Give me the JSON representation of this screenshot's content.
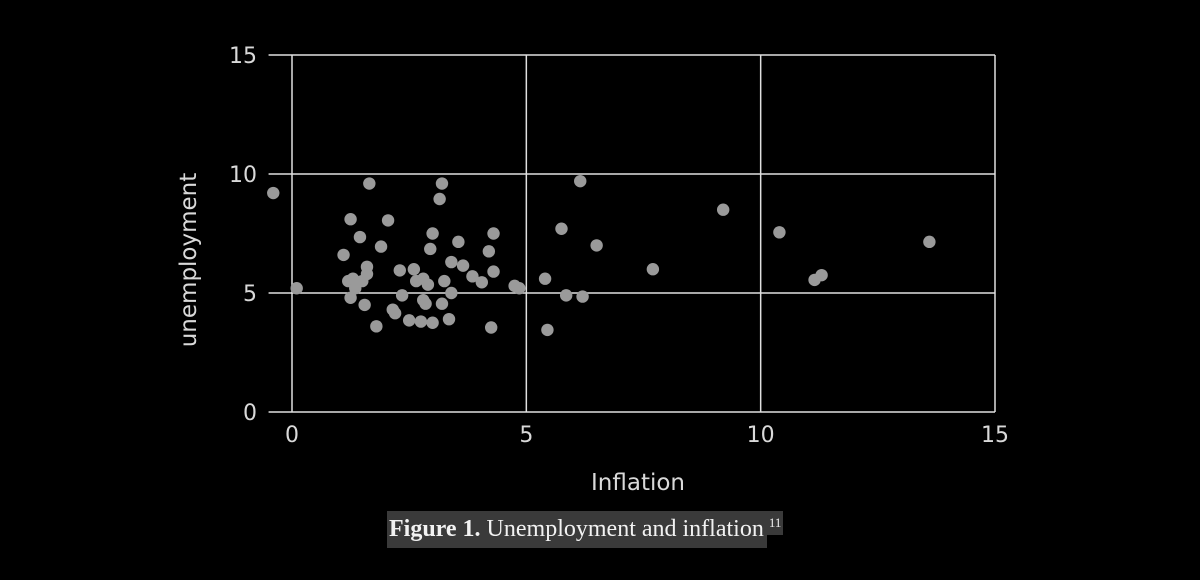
{
  "chart_data": {
    "type": "scatter",
    "xlabel": "Inflation",
    "ylabel": "unemployment",
    "xlim": [
      -0.5,
      15
    ],
    "ylim": [
      0,
      15
    ],
    "xticks": [
      "0",
      "5",
      "10",
      "15"
    ],
    "yticks": [
      "0",
      "5",
      "10",
      "15"
    ],
    "grid": true,
    "colors": {
      "background": "#000000",
      "grid": "#e0e0e0",
      "point": "#9a9a9a",
      "text": "#d9d9d9"
    },
    "points": [
      [
        -0.4,
        9.2
      ],
      [
        0.1,
        5.2
      ],
      [
        1.1,
        6.6
      ],
      [
        1.2,
        5.5
      ],
      [
        1.25,
        8.1
      ],
      [
        1.25,
        4.8
      ],
      [
        1.3,
        5.6
      ],
      [
        1.35,
        5.2
      ],
      [
        1.45,
        7.35
      ],
      [
        1.5,
        5.5
      ],
      [
        1.55,
        4.5
      ],
      [
        1.6,
        5.8
      ],
      [
        1.6,
        6.1
      ],
      [
        1.65,
        9.6
      ],
      [
        1.8,
        3.6
      ],
      [
        1.9,
        6.95
      ],
      [
        2.05,
        8.05
      ],
      [
        2.15,
        4.3
      ],
      [
        2.2,
        4.15
      ],
      [
        2.3,
        5.95
      ],
      [
        2.35,
        4.9
      ],
      [
        2.5,
        3.85
      ],
      [
        2.6,
        6.0
      ],
      [
        2.65,
        5.5
      ],
      [
        2.75,
        3.8
      ],
      [
        2.8,
        5.6
      ],
      [
        2.8,
        4.7
      ],
      [
        2.85,
        4.55
      ],
      [
        2.9,
        5.35
      ],
      [
        2.95,
        6.85
      ],
      [
        3.0,
        3.75
      ],
      [
        3.0,
        7.5
      ],
      [
        3.15,
        8.95
      ],
      [
        3.2,
        9.6
      ],
      [
        3.2,
        4.55
      ],
      [
        3.25,
        5.5
      ],
      [
        3.35,
        3.9
      ],
      [
        3.4,
        6.3
      ],
      [
        3.4,
        5.0
      ],
      [
        3.55,
        7.15
      ],
      [
        3.65,
        6.15
      ],
      [
        3.85,
        5.7
      ],
      [
        4.05,
        5.45
      ],
      [
        4.2,
        6.75
      ],
      [
        4.25,
        3.55
      ],
      [
        4.3,
        5.9
      ],
      [
        4.3,
        7.5
      ],
      [
        4.75,
        5.3
      ],
      [
        4.85,
        5.2
      ],
      [
        5.4,
        5.6
      ],
      [
        5.45,
        3.45
      ],
      [
        5.75,
        7.7
      ],
      [
        5.85,
        4.9
      ],
      [
        6.15,
        9.7
      ],
      [
        6.2,
        4.85
      ],
      [
        6.5,
        7.0
      ],
      [
        7.7,
        6.0
      ],
      [
        9.2,
        8.5
      ],
      [
        10.4,
        7.55
      ],
      [
        11.15,
        5.55
      ],
      [
        11.3,
        5.75
      ],
      [
        13.6,
        7.15
      ]
    ]
  },
  "caption": {
    "label": "Figure 1.",
    "text": "Unemployment and inflation",
    "footnote": "11"
  }
}
